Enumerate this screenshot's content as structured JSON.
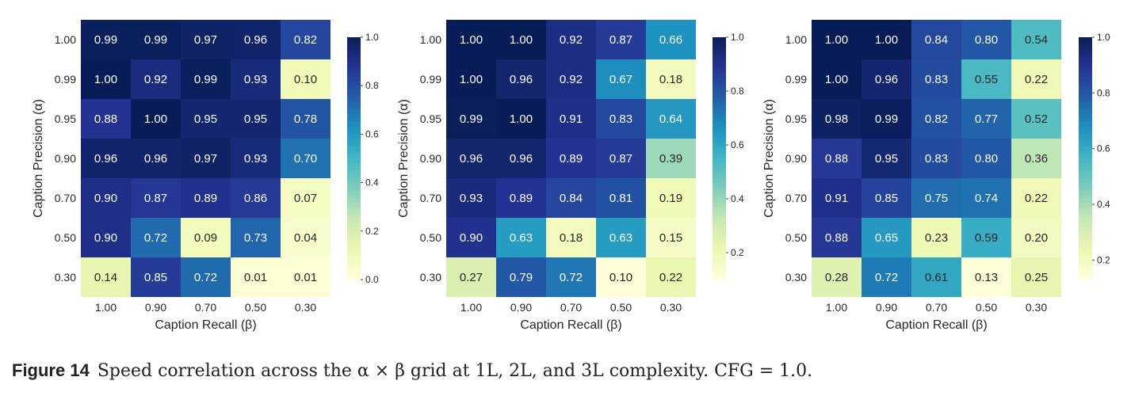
{
  "chart_data": [
    {
      "type": "heatmap",
      "xlabel": "Caption Recall (β)",
      "ylabel": "Caption Precision (α)",
      "x_categories": [
        "1.00",
        "0.90",
        "0.70",
        "0.50",
        "0.30"
      ],
      "y_categories": [
        "1.00",
        "0.99",
        "0.95",
        "0.90",
        "0.70",
        "0.50",
        "0.30"
      ],
      "values": [
        [
          0.99,
          0.99,
          0.97,
          0.96,
          0.82
        ],
        [
          1.0,
          0.92,
          0.99,
          0.93,
          0.1
        ],
        [
          0.88,
          1.0,
          0.95,
          0.95,
          0.78
        ],
        [
          0.96,
          0.96,
          0.97,
          0.93,
          0.7
        ],
        [
          0.9,
          0.87,
          0.89,
          0.86,
          0.07
        ],
        [
          0.9,
          0.72,
          0.09,
          0.73,
          0.04
        ],
        [
          0.14,
          0.85,
          0.72,
          0.01,
          0.01
        ]
      ],
      "vmin": 0.0,
      "vmax": 1.0,
      "colorbar_ticks": [
        "0.0",
        "0.2",
        "0.4",
        "0.6",
        "0.8",
        "1.0"
      ],
      "colormap": "YlGnBu"
    },
    {
      "type": "heatmap",
      "xlabel": "Caption Recall (β)",
      "ylabel": "Caption Precision (α)",
      "x_categories": [
        "1.00",
        "0.90",
        "0.70",
        "0.50",
        "0.30"
      ],
      "y_categories": [
        "1.00",
        "0.99",
        "0.95",
        "0.90",
        "0.70",
        "0.50",
        "0.30"
      ],
      "values": [
        [
          1.0,
          1.0,
          0.92,
          0.87,
          0.66
        ],
        [
          1.0,
          0.96,
          0.92,
          0.67,
          0.18
        ],
        [
          0.99,
          1.0,
          0.91,
          0.83,
          0.64
        ],
        [
          0.96,
          0.96,
          0.89,
          0.87,
          0.39
        ],
        [
          0.93,
          0.89,
          0.84,
          0.81,
          0.19
        ],
        [
          0.9,
          0.63,
          0.18,
          0.63,
          0.15
        ],
        [
          0.27,
          0.79,
          0.72,
          0.1,
          0.22
        ]
      ],
      "vmin": 0.1,
      "vmax": 1.0,
      "colorbar_ticks": [
        "0.2",
        "0.4",
        "0.6",
        "0.8",
        "1.0"
      ],
      "colormap": "YlGnBu"
    },
    {
      "type": "heatmap",
      "xlabel": "Caption Recall (β)",
      "ylabel": "Caption Precision (α)",
      "x_categories": [
        "1.00",
        "0.90",
        "0.70",
        "0.50",
        "0.30"
      ],
      "y_categories": [
        "1.00",
        "0.99",
        "0.95",
        "0.90",
        "0.70",
        "0.50",
        "0.30"
      ],
      "values": [
        [
          1.0,
          1.0,
          0.84,
          0.8,
          0.54
        ],
        [
          1.0,
          0.96,
          0.83,
          0.55,
          0.22
        ],
        [
          0.98,
          0.99,
          0.82,
          0.77,
          0.52
        ],
        [
          0.88,
          0.95,
          0.83,
          0.8,
          0.36
        ],
        [
          0.91,
          0.85,
          0.75,
          0.74,
          0.22
        ],
        [
          0.88,
          0.65,
          0.23,
          0.59,
          0.2
        ],
        [
          0.28,
          0.72,
          0.61,
          0.13,
          0.25
        ]
      ],
      "vmin": 0.13,
      "vmax": 1.0,
      "colorbar_ticks": [
        "0.2",
        "0.4",
        "0.6",
        "0.8",
        "1.0"
      ],
      "colormap": "YlGnBu"
    }
  ],
  "caption": {
    "label": "Figure 14",
    "text": "Speed correlation across the α × β grid at 1L, 2L, and 3L complexity. CFG = 1.0."
  }
}
